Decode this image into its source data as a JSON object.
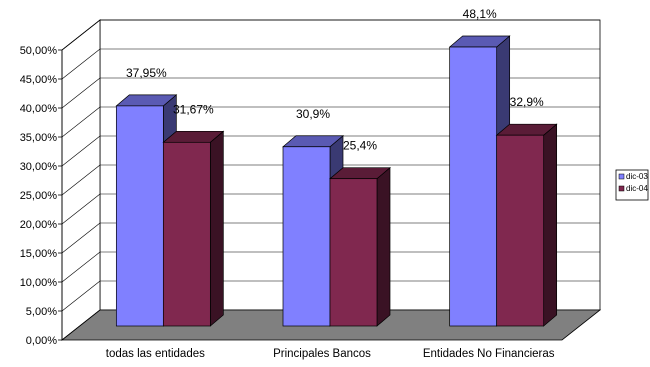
{
  "chart_data": {
    "type": "bar",
    "style": "3d-clustered-column",
    "title": "",
    "xlabel": "",
    "ylabel": "",
    "categories": [
      "todas las entidades",
      "Principales Bancos",
      "Entidades No Financieras"
    ],
    "series": [
      {
        "name": "dic-03",
        "color": "#8080ff",
        "values": [
          37.95,
          30.9,
          48.1
        ],
        "data_labels": [
          "37,95%",
          "30,9%",
          "48,1%"
        ]
      },
      {
        "name": "dic-04",
        "color": "#80284f",
        "values": [
          31.67,
          25.4,
          32.9
        ],
        "data_labels": [
          "31,67%",
          "25,4%",
          "32,9%"
        ]
      }
    ],
    "ylim": [
      0,
      50
    ],
    "y_ticks": [
      "0,00%",
      "5,00%",
      "10,00%",
      "15,00%",
      "20,00%",
      "25,00%",
      "30,00%",
      "35,00%",
      "40,00%",
      "45,00%",
      "50,00%"
    ],
    "grid": true,
    "floor_color": "#808080",
    "legend_position": "right"
  }
}
